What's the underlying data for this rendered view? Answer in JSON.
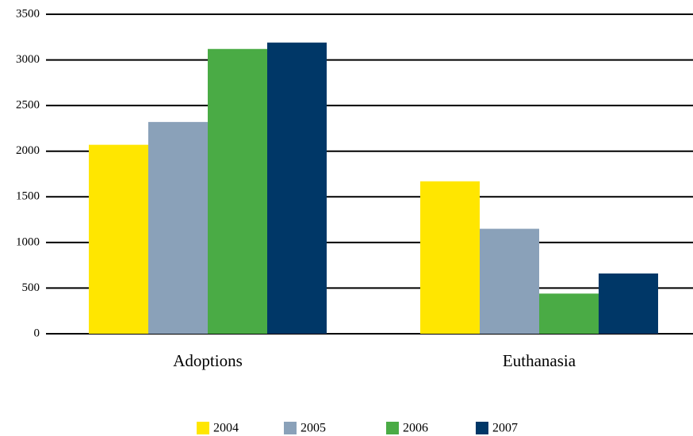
{
  "chart_data": {
    "type": "bar",
    "categories": [
      "Adoptions",
      "Euthanasia"
    ],
    "series": [
      {
        "name": "2004",
        "color": "#ffe600",
        "values": [
          2070,
          1670
        ]
      },
      {
        "name": "2005",
        "color": "#8aa1b9",
        "values": [
          2320,
          1150
        ]
      },
      {
        "name": "2006",
        "color": "#4aab45",
        "values": [
          3120,
          440
        ]
      },
      {
        "name": "2007",
        "color": "#003767",
        "values": [
          3190,
          660
        ]
      }
    ],
    "ylim": [
      0,
      3500
    ],
    "yticks": [
      0,
      500,
      1000,
      1500,
      2000,
      2500,
      3000,
      3500
    ],
    "grid": true,
    "legend": "bottom"
  }
}
